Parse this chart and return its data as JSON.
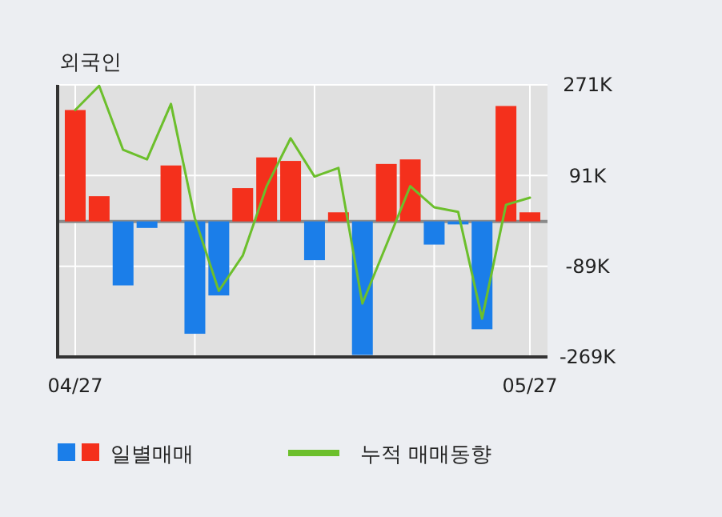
{
  "chart_data": {
    "type": "bar",
    "title": "외국인",
    "categories": [
      "04/27",
      null,
      null,
      null,
      null,
      null,
      null,
      null,
      null,
      null,
      null,
      null,
      null,
      null,
      null,
      null,
      null,
      null,
      null,
      "05/27"
    ],
    "series": [
      {
        "name": "일별매매",
        "values": [
          221,
          50,
          -127,
          -13,
          111,
          -223,
          -147,
          66,
          127,
          120,
          -77,
          18,
          -265,
          114,
          123,
          -46,
          -6,
          -214,
          229,
          18
        ],
        "colors": [
          "#f4301c",
          "#f4301c",
          "#1b7ee9",
          "#1b7ee9",
          "#f4301c",
          "#1b7ee9",
          "#1b7ee9",
          "#f4301c",
          "#f4301c",
          "#f4301c",
          "#1b7ee9",
          "#f4301c",
          "#1b7ee9",
          "#f4301c",
          "#f4301c",
          "#1b7ee9",
          "#1b7ee9",
          "#1b7ee9",
          "#f4301c",
          "#f4301c"
        ]
      },
      {
        "name": "누적 매매동향",
        "type": "line",
        "color": "#6cbf2c",
        "values": [
          221,
          269,
          142,
          123,
          233,
          6,
          -138,
          -68,
          70,
          165,
          89,
          106,
          -163,
          -47,
          70,
          28,
          19,
          -193,
          33,
          47
        ]
      }
    ],
    "ylim": [
      -269,
      271
    ],
    "yticks": [
      {
        "value": 271,
        "label": "271K"
      },
      {
        "value": 91,
        "label": "91K"
      },
      {
        "value": -89,
        "label": "-89K"
      },
      {
        "value": -269,
        "label": "-269K"
      }
    ],
    "grid": true,
    "legend": "bottom"
  }
}
